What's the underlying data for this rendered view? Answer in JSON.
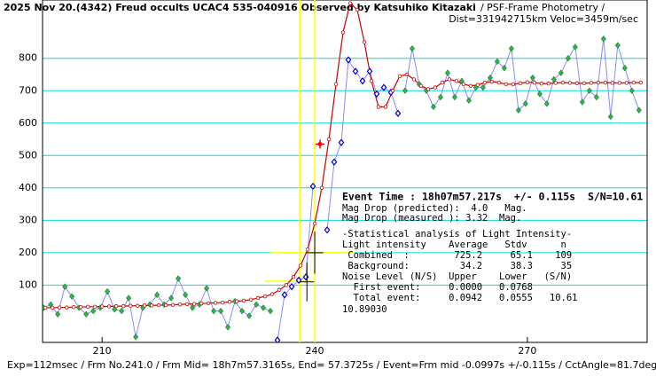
{
  "chart_data": {
    "type": "line",
    "title": "2025 Nov 20.(4342) Freud occults UCAC4 535-040916 Observed by Katsuhiko Kitazaki",
    "subtitle": "/ PSF-Frame Photometry /",
    "subtitle2": "Dist=331942715km Veloc=3459m/sec",
    "footer": "Exp=112msec / Frm No.241.0 / Frm Mid= 18h7m57.3165s, End= 57.3725s / Event=Frm mid -0.0997s +/-0.115s / CctAngle=81.7deg",
    "xlim": [
      201.6,
      286.9
    ],
    "ylim": [
      -77,
      980
    ],
    "xticks": [
      210,
      240,
      270
    ],
    "yticks": [
      100,
      200,
      300,
      400,
      500,
      600,
      700,
      800
    ],
    "grid": true,
    "grid_color": "#00e0e0",
    "series": [
      {
        "color": "#2eb84a",
        "line_color": "#8888ff",
        "marker": "diamond",
        "x": [
          201.75,
          202.75,
          203.75,
          204.75,
          205.75,
          206.75,
          207.75,
          208.75,
          209.75,
          210.75,
          211.75,
          212.75,
          213.75,
          214.75,
          215.75,
          216.75,
          217.75,
          218.75,
          219.75,
          220.75,
          221.75,
          222.75,
          223.75,
          224.75,
          225.75,
          226.75,
          227.75,
          228.75,
          229.75,
          230.75,
          231.75,
          232.75,
          233.75
        ],
        "values": [
          30,
          40,
          10,
          95,
          65,
          30,
          10,
          20,
          30,
          80,
          25,
          20,
          60,
          -60,
          30,
          40,
          70,
          40,
          60,
          120,
          70,
          30,
          40,
          90,
          20,
          20,
          -30,
          50,
          20,
          5,
          40,
          30,
          20
        ]
      },
      {
        "color": "#0000cc",
        "line_color": "#8888ff",
        "marker": "diamond-open",
        "x": [
          234.75,
          235.75,
          236.75,
          237.75,
          238.75,
          239.75,
          240.75,
          241.75,
          242.75,
          243.75,
          244.75,
          245.75,
          246.75,
          247.75,
          248.75,
          249.75,
          250.75,
          251.75
        ],
        "values": [
          -70,
          70,
          95,
          115,
          125,
          405,
          null,
          270,
          480,
          540,
          795,
          760,
          730,
          760,
          690,
          710,
          695,
          630
        ]
      },
      {
        "color": "#2eb84a",
        "line_color": "#8888ff",
        "marker": "diamond",
        "x": [
          252.75,
          253.75,
          254.75,
          255.75,
          256.75,
          257.75,
          258.75,
          259.75,
          260.75,
          261.75,
          262.75,
          263.75,
          264.75,
          265.75,
          266.75,
          267.75,
          268.75,
          269.75,
          270.75,
          271.75,
          272.75,
          273.75,
          274.75,
          275.75,
          276.75,
          277.75,
          278.75,
          279.75,
          280.75,
          281.75,
          282.75,
          283.75,
          284.75,
          285.75
        ],
        "values": [
          700,
          830,
          720,
          700,
          650,
          680,
          755,
          680,
          730,
          670,
          710,
          710,
          740,
          790,
          770,
          830,
          640,
          660,
          740,
          690,
          660,
          735,
          755,
          800,
          835,
          665,
          700,
          680,
          860,
          620,
          840,
          770,
          700,
          640
        ]
      },
      {
        "color": "#cc0000",
        "line_color": "#cc0000",
        "marker": "circle",
        "x": [
          202,
          203,
          204,
          205,
          206,
          207,
          208,
          209,
          210,
          211,
          212,
          213,
          214,
          215,
          216,
          217,
          218,
          219,
          220,
          221,
          222,
          223,
          224,
          225,
          226,
          227,
          228,
          229,
          230,
          231,
          232,
          233,
          234,
          235,
          236,
          237,
          238,
          239,
          240,
          241,
          242,
          243,
          244,
          245,
          246,
          247,
          248,
          249,
          250,
          251,
          252,
          253,
          254,
          255,
          256,
          257,
          258,
          259,
          260,
          261,
          262,
          263,
          264,
          265,
          266,
          267,
          268,
          269,
          270,
          271,
          272,
          273,
          274,
          275,
          276,
          277,
          278,
          279,
          280,
          281,
          282,
          283,
          284,
          285,
          286
        ],
        "values": [
          30,
          30,
          31,
          31,
          32,
          32,
          33,
          33,
          34,
          34,
          35,
          35,
          36,
          36,
          37,
          37,
          38,
          38,
          39,
          40,
          41,
          42,
          43,
          44,
          45,
          46,
          48,
          50,
          52,
          55,
          60,
          65,
          72,
          85,
          100,
          125,
          160,
          210,
          290,
          400,
          550,
          720,
          880,
          970,
          950,
          850,
          730,
          650,
          650,
          700,
          745,
          750,
          735,
          715,
          705,
          710,
          725,
          735,
          730,
          720,
          715,
          718,
          725,
          728,
          725,
          720,
          720,
          723,
          726,
          725,
          722,
          722,
          724,
          725,
          724,
          723,
          723,
          724,
          725,
          725,
          724,
          724,
          724,
          725,
          725
        ]
      }
    ],
    "star": {
      "x": 240.75,
      "y": 535,
      "color": "#ff0000"
    },
    "event_lines": [
      237.9,
      240.0
    ],
    "event_line_color": "#ffff00",
    "error_bars": [
      {
        "x": 238.9,
        "y": 110,
        "xerr": 1.0,
        "yerr": 60
      },
      {
        "x": 240.0,
        "y": 200,
        "xerr": 1.2,
        "yerr": 65
      }
    ],
    "error_spans": [
      {
        "y": 112,
        "x": [
          232.9,
          239.4
        ]
      },
      {
        "y": 200,
        "x": [
          233.8,
          245.6
        ]
      }
    ],
    "notes": [
      "Event Time : 18h07m57.217s  +/- 0.115s  S/N=10.61",
      "Mag Drop (predicted):  4.0   Mag.",
      "Mag Drop (measured ): 3.32  Mag.",
      "-Statistical analysis of Light Intensity-",
      "Light intensity    Average   Stdv      n",
      " Combined  :        725.2     65.1    109",
      " Background:         34.2     38.3     35",
      "Noise Level (N/S)  Upper    Lower   (S/N)",
      "  First event:     0.0000   0.0768",
      "  Total event:     0.0942   0.0555   10.61",
      "10.89030"
    ]
  }
}
